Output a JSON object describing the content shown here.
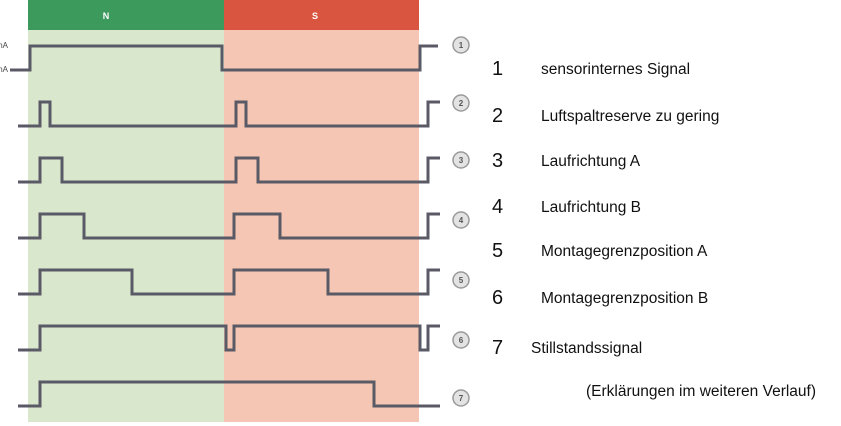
{
  "zones": {
    "n_label": "N",
    "s_label": "S",
    "n_header_color": "#3c9a5c",
    "s_header_color": "#d9553f",
    "n_body_color": "#d9e8cd",
    "s_body_color": "#f6c6b4"
  },
  "axis": {
    "high_label": "mA",
    "low_label": "mA"
  },
  "signals": [
    {
      "id": "1",
      "name": "sensorinternes Signal"
    },
    {
      "id": "2",
      "name": "Luftspaltreserve zu gering"
    },
    {
      "id": "3",
      "name": "Laufrichtung A"
    },
    {
      "id": "4",
      "name": "Laufrichtung B"
    },
    {
      "id": "5",
      "name": "Montagegrenzposition A"
    },
    {
      "id": "6",
      "name": "Montagegrenzposition B"
    },
    {
      "id": "7",
      "name": "Stillstandssignal"
    }
  ],
  "note": "(Erklärungen im weiteren Verlauf)",
  "colors": {
    "waveform": "#5a5a66",
    "badge_fill": "#e3e3e3",
    "badge_stroke": "#9a9a9a",
    "badge_text": "#555555"
  }
}
